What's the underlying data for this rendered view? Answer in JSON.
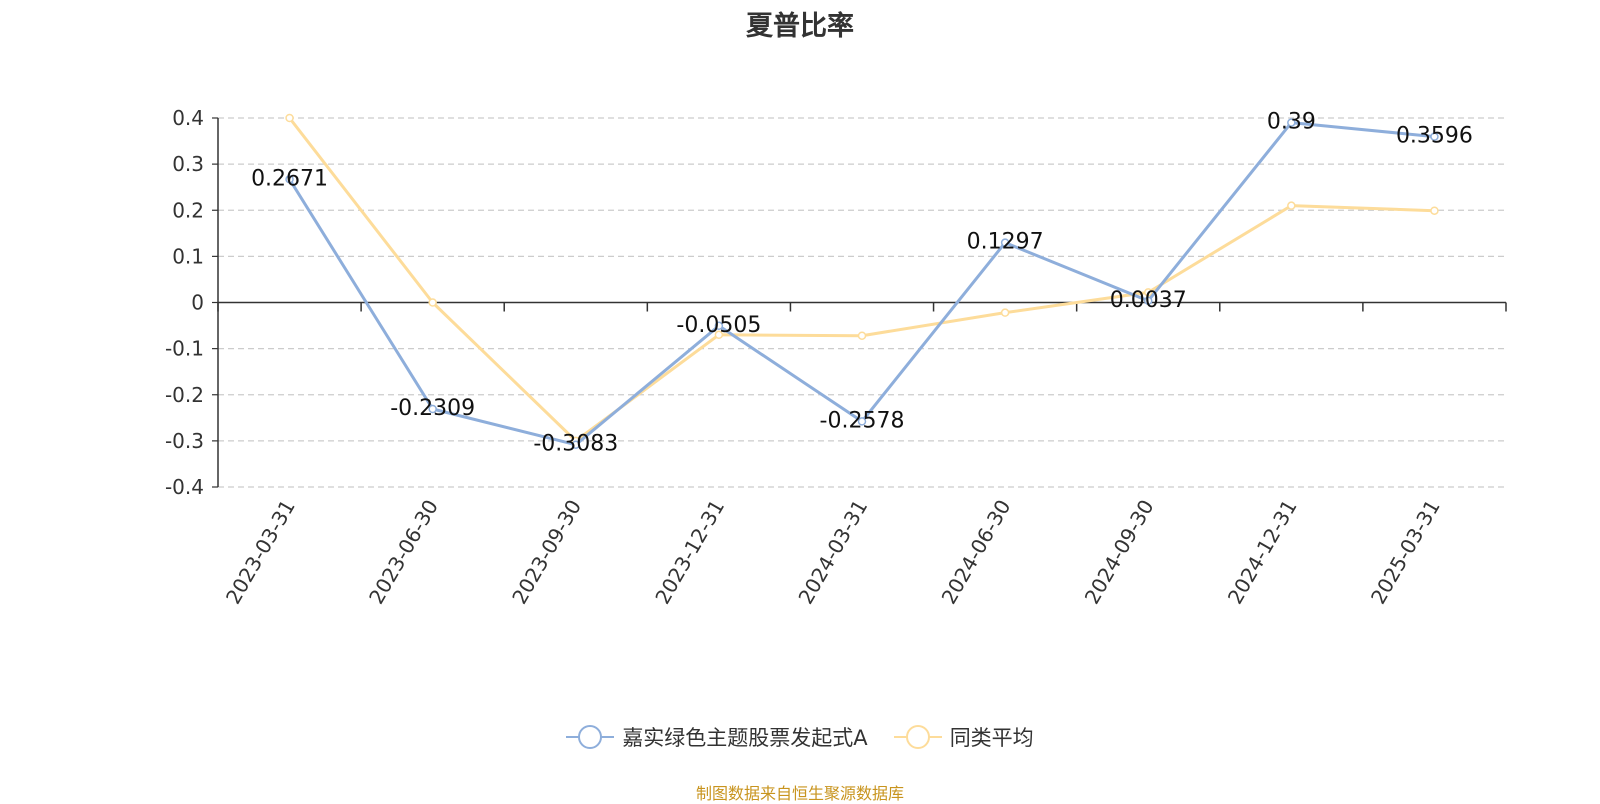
{
  "chart_data": {
    "type": "line",
    "title": "夏普比率",
    "categories": [
      "2023-03-31",
      "2023-06-30",
      "2023-09-30",
      "2023-12-31",
      "2024-03-31",
      "2024-06-30",
      "2024-09-30",
      "2024-12-31",
      "2025-03-31"
    ],
    "series": [
      {
        "name": "嘉实绿色主题股票发起式A",
        "color": "#8eaedb",
        "values": [
          0.2671,
          -0.2309,
          -0.3083,
          -0.0505,
          -0.2578,
          0.1297,
          0.0037,
          0.39,
          0.3596
        ],
        "labels": [
          "0.2671",
          "-0.2309",
          "-0.3083",
          "-0.0505",
          "-0.2578",
          "0.1297",
          "0.0037",
          "0.39",
          "0.3596"
        ]
      },
      {
        "name": "同类平均",
        "color": "#fddc9a",
        "values": [
          0.4,
          0.0,
          -0.3,
          -0.07,
          -0.072,
          -0.022,
          0.022,
          0.21,
          0.199
        ]
      }
    ],
    "ylim": [
      -0.4,
      0.4
    ],
    "yticks": [
      0.4,
      0.3,
      0.2,
      0.1,
      0,
      -0.1,
      -0.2,
      -0.3,
      -0.4
    ],
    "ytick_labels": [
      "0.4",
      "0.3",
      "0.2",
      "0.1",
      "0",
      "-0.1",
      "-0.2",
      "-0.3",
      "-0.4"
    ],
    "grid": true,
    "legend_position": "bottom-center"
  },
  "source_note": "制图数据来自恒生聚源数据库"
}
